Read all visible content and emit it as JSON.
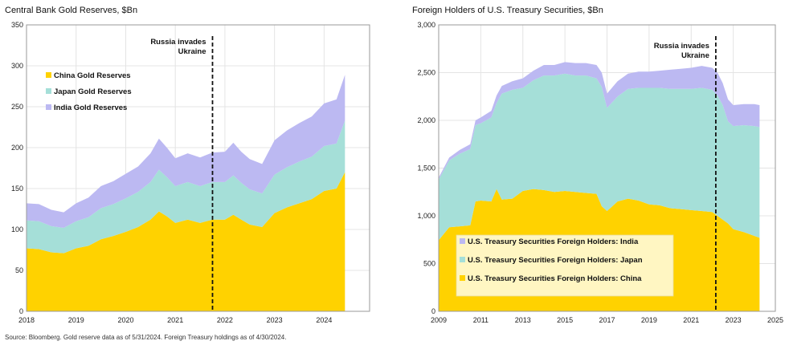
{
  "source": "Source: Bloomberg. Gold reserve data as of 5/31/2024. Foreign Treasury holdings as of 4/30/2024.",
  "chart_data": [
    {
      "type": "area",
      "stacked": true,
      "title": "Central Bank Gold Reserves, $Bn",
      "xlabel": "",
      "ylabel": "",
      "xlim": [
        2018.0,
        2024.917
      ],
      "ylim": [
        0,
        350
      ],
      "yticks": [
        0,
        50,
        100,
        150,
        200,
        250,
        300,
        350
      ],
      "xticks": [
        2018,
        2019,
        2020,
        2021,
        2022,
        2023,
        2024
      ],
      "grid": true,
      "legend": "top-left",
      "annotation": {
        "lines": [
          "Russia invades",
          "Ukraine"
        ],
        "x": 2021.75
      },
      "x": [
        2018.0,
        2018.25,
        2018.5,
        2018.75,
        2019.0,
        2019.25,
        2019.5,
        2019.75,
        2020.0,
        2020.25,
        2020.5,
        2020.67,
        2020.83,
        2021.0,
        2021.25,
        2021.5,
        2021.75,
        2022.0,
        2022.17,
        2022.33,
        2022.5,
        2022.75,
        2023.0,
        2023.25,
        2023.5,
        2023.75,
        2024.0,
        2024.25,
        2024.42
      ],
      "series": [
        {
          "name": "China Gold Reserves",
          "color": "#FFD200",
          "values": [
            77,
            76,
            72,
            71,
            77,
            80,
            88,
            92,
            97,
            103,
            112,
            122,
            116,
            108,
            112,
            108,
            112,
            112,
            118,
            112,
            106,
            103,
            120,
            127,
            132,
            137,
            147,
            150,
            170
          ]
        },
        {
          "name": "Japan Gold Reserves",
          "color": "#A5DFD8",
          "values": [
            34,
            34,
            32,
            31,
            33,
            35,
            38,
            39,
            41,
            43,
            46,
            51,
            48,
            45,
            46,
            45,
            46,
            46,
            48,
            45,
            43,
            41,
            47,
            49,
            51,
            52,
            55,
            55,
            63
          ]
        },
        {
          "name": "India Gold Reserves",
          "color": "#BCB9F2",
          "values": [
            21,
            21,
            20,
            19,
            22,
            24,
            27,
            28,
            30,
            31,
            35,
            38,
            36,
            34,
            35,
            35,
            36,
            37,
            40,
            38,
            37,
            36,
            42,
            45,
            47,
            49,
            52,
            54,
            56
          ]
        }
      ]
    },
    {
      "type": "area",
      "stacked": true,
      "title": "Foreign Holders of U.S. Treasury Securities, $Bn",
      "xlabel": "",
      "ylabel": "",
      "xlim": [
        2009.0,
        2025.0
      ],
      "ylim": [
        0,
        3000
      ],
      "yticks": [
        "0",
        "500",
        "1,000",
        "1,500",
        "2,000",
        "2,500",
        "3,000"
      ],
      "ytick_values": [
        0,
        500,
        1000,
        1500,
        2000,
        2500,
        3000
      ],
      "xticks": [
        2009,
        2011,
        2013,
        2015,
        2017,
        2019,
        2021,
        2023,
        2025
      ],
      "grid": true,
      "legend": "bottom-left",
      "annotation": {
        "lines": [
          "Russia invades",
          "Ukraine"
        ],
        "x": 2022.17
      },
      "x": [
        2009.0,
        2009.5,
        2010.0,
        2010.5,
        2010.75,
        2011.0,
        2011.5,
        2011.75,
        2012.0,
        2012.5,
        2013.0,
        2013.5,
        2014.0,
        2014.5,
        2015.0,
        2015.5,
        2016.0,
        2016.5,
        2016.75,
        2017.0,
        2017.5,
        2018.0,
        2018.5,
        2019.0,
        2019.5,
        2020.0,
        2020.5,
        2021.0,
        2021.5,
        2022.0,
        2022.25,
        2022.5,
        2022.75,
        2023.0,
        2023.5,
        2024.0,
        2024.25
      ],
      "series": [
        {
          "name": "U.S. Treasury Securities Foreign Holders: China",
          "color": "#FFD200",
          "values": [
            745,
            880,
            890,
            900,
            1150,
            1160,
            1150,
            1280,
            1170,
            1180,
            1260,
            1280,
            1270,
            1250,
            1260,
            1250,
            1240,
            1230,
            1100,
            1050,
            1150,
            1180,
            1160,
            1120,
            1110,
            1080,
            1070,
            1060,
            1050,
            1040,
            1000,
            960,
            920,
            860,
            830,
            790,
            770
          ]
        },
        {
          "name": "U.S. Treasury Securities Foreign Holders: Japan",
          "color": "#A5DFD8",
          "values": [
            635,
            700,
            760,
            800,
            800,
            810,
            880,
            900,
            1110,
            1140,
            1080,
            1140,
            1200,
            1220,
            1230,
            1220,
            1230,
            1210,
            1250,
            1080,
            1100,
            1150,
            1180,
            1220,
            1230,
            1250,
            1260,
            1270,
            1290,
            1280,
            1260,
            1200,
            1070,
            1080,
            1120,
            1150,
            1160
          ]
        },
        {
          "name": "U.S. Treasury Securities Foreign Holders: India",
          "color": "#BCB9F2",
          "values": [
            20,
            30,
            40,
            50,
            50,
            60,
            70,
            80,
            80,
            90,
            100,
            100,
            110,
            110,
            120,
            130,
            130,
            140,
            150,
            150,
            160,
            160,
            170,
            170,
            180,
            200,
            210,
            220,
            230,
            230,
            240,
            230,
            230,
            220,
            220,
            230,
            230
          ]
        }
      ]
    }
  ]
}
